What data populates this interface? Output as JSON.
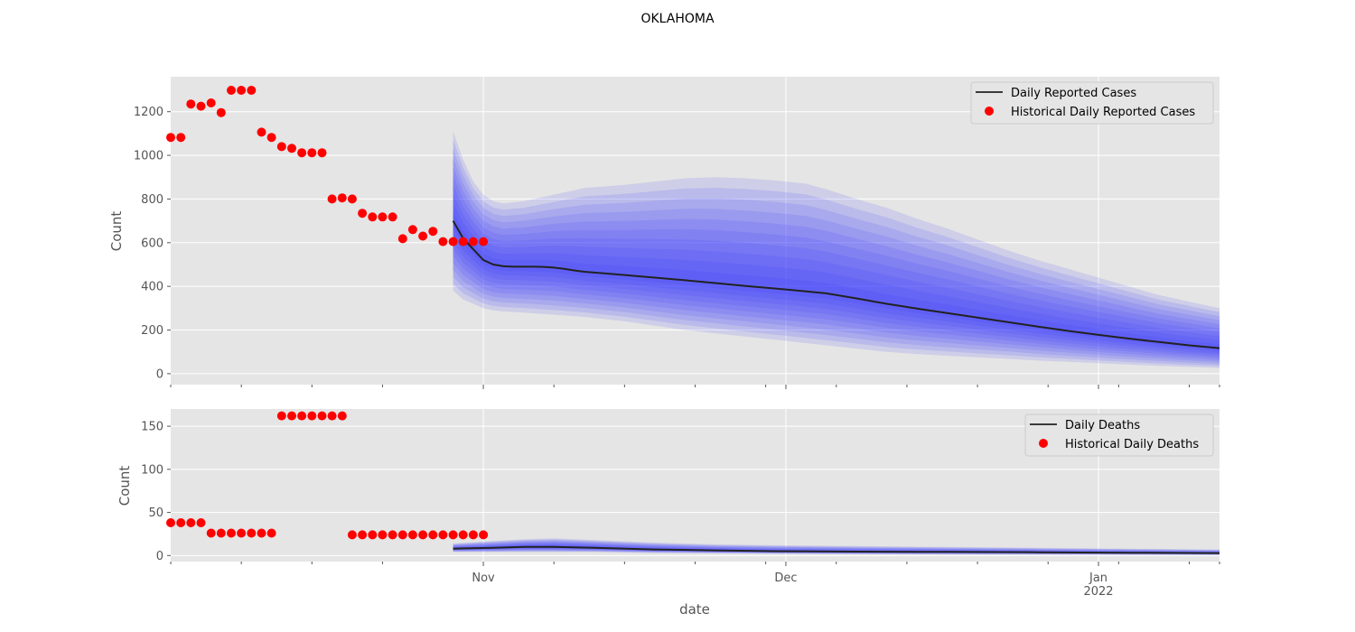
{
  "figure": {
    "title": "OKLAHOMA",
    "xlabel": "date"
  },
  "colors": {
    "panel_bg": "#e5e5e5",
    "grid": "#ffffff",
    "forecast_line": "#222222",
    "band": "#3333ff",
    "historical": "#ff0000"
  },
  "chart_data": [
    {
      "type": "line",
      "name": "cases-panel",
      "ylabel": "Count",
      "ylim": [
        -50,
        1360
      ],
      "yticks": [
        0,
        200,
        400,
        600,
        800,
        1000,
        1200
      ],
      "x_axis": {
        "type": "date",
        "range": [
          "2021-10-01",
          "2022-01-13"
        ],
        "tick_labels_shown": false
      },
      "grid": true,
      "legend": {
        "placement": "top-right",
        "entries": [
          "Daily Reported Cases",
          "Historical Daily Reported Cases"
        ]
      },
      "series": [
        {
          "name": "Daily Reported Cases",
          "kind": "line",
          "x": [
            "2021-10-29",
            "2021-10-30",
            "2021-10-31",
            "2021-11-01",
            "2021-11-02",
            "2021-11-03",
            "2021-11-04",
            "2021-11-05",
            "2021-11-06",
            "2021-11-07",
            "2021-11-08",
            "2021-11-09",
            "2021-11-10",
            "2021-11-11",
            "2021-11-13",
            "2021-11-15",
            "2021-11-18",
            "2021-11-21",
            "2021-11-24",
            "2021-11-27",
            "2021-11-30",
            "2021-12-03",
            "2021-12-05",
            "2021-12-08",
            "2021-12-11",
            "2021-12-14",
            "2021-12-17",
            "2021-12-20",
            "2021-12-23",
            "2021-12-26",
            "2021-12-29",
            "2022-01-01",
            "2022-01-04",
            "2022-01-07",
            "2022-01-10",
            "2022-01-13"
          ],
          "values": [
            700,
            620,
            570,
            520,
            500,
            492,
            490,
            490,
            490,
            489,
            486,
            480,
            473,
            467,
            460,
            452,
            440,
            428,
            415,
            402,
            390,
            377,
            368,
            345,
            320,
            298,
            278,
            257,
            236,
            216,
            196,
            178,
            161,
            145,
            130,
            117
          ]
        },
        {
          "name": "Historical Daily Reported Cases",
          "kind": "scatter",
          "x": [
            "2021-10-01",
            "2021-10-02",
            "2021-10-03",
            "2021-10-04",
            "2021-10-05",
            "2021-10-06",
            "2021-10-07",
            "2021-10-08",
            "2021-10-09",
            "2021-10-10",
            "2021-10-11",
            "2021-10-12",
            "2021-10-13",
            "2021-10-14",
            "2021-10-15",
            "2021-10-16",
            "2021-10-17",
            "2021-10-18",
            "2021-10-19",
            "2021-10-20",
            "2021-10-21",
            "2021-10-22",
            "2021-10-23",
            "2021-10-24",
            "2021-10-25",
            "2021-10-26",
            "2021-10-27",
            "2021-10-28",
            "2021-10-29",
            "2021-10-30",
            "2021-10-31",
            "2021-11-01"
          ],
          "values": [
            1082,
            1082,
            1235,
            1225,
            1240,
            1196,
            1298,
            1298,
            1298,
            1106,
            1082,
            1040,
            1032,
            1012,
            1012,
            1012,
            800,
            805,
            800,
            735,
            718,
            718,
            718,
            618,
            660,
            630,
            652,
            605,
            605,
            605,
            605,
            605
          ]
        }
      ],
      "uncertainty_bands": {
        "x": [
          "2021-10-29",
          "2021-10-30",
          "2021-10-31",
          "2021-11-01",
          "2021-11-02",
          "2021-11-03",
          "2021-11-05",
          "2021-11-08",
          "2021-11-11",
          "2021-11-15",
          "2021-11-18",
          "2021-11-21",
          "2021-11-24",
          "2021-11-27",
          "2021-11-30",
          "2021-12-03",
          "2021-12-05",
          "2021-12-08",
          "2021-12-11",
          "2021-12-14",
          "2021-12-17",
          "2021-12-20",
          "2021-12-23",
          "2021-12-26",
          "2021-12-29",
          "2022-01-01",
          "2022-01-04",
          "2022-01-07",
          "2022-01-10",
          "2022-01-13"
        ],
        "outer_low": [
          380,
          340,
          320,
          300,
          290,
          285,
          280,
          270,
          260,
          240,
          220,
          200,
          185,
          170,
          155,
          140,
          130,
          115,
          100,
          90,
          82,
          75,
          68,
          60,
          54,
          48,
          42,
          36,
          31,
          26
        ],
        "outer_high": [
          1110,
          980,
          880,
          820,
          790,
          780,
          790,
          820,
          850,
          865,
          880,
          895,
          900,
          895,
          885,
          870,
          845,
          800,
          760,
          710,
          665,
          615,
          565,
          520,
          480,
          440,
          400,
          360,
          330,
          300
        ]
      }
    },
    {
      "type": "line",
      "name": "deaths-panel",
      "ylabel": "Count",
      "ylim": [
        -7,
        170
      ],
      "yticks": [
        0,
        50,
        100,
        150
      ],
      "x_axis": {
        "type": "date",
        "range": [
          "2021-10-01",
          "2022-01-13"
        ],
        "tick_labels": [
          "Nov",
          "Dec",
          "Jan\n2022"
        ]
      },
      "grid": true,
      "legend": {
        "placement": "top-right",
        "entries": [
          "Daily Deaths",
          "Historical Daily Deaths"
        ]
      },
      "series": [
        {
          "name": "Daily Deaths",
          "kind": "line",
          "x": [
            "2021-10-29",
            "2021-11-02",
            "2021-11-05",
            "2021-11-08",
            "2021-11-12",
            "2021-11-18",
            "2021-11-24",
            "2021-11-30",
            "2021-12-08",
            "2021-12-17",
            "2021-12-26",
            "2022-01-04",
            "2022-01-13"
          ],
          "values": [
            8,
            9,
            10,
            10,
            9,
            7,
            6,
            5,
            4.5,
            4.2,
            3.8,
            3.3,
            2.8
          ]
        },
        {
          "name": "Historical Daily Deaths",
          "kind": "scatter",
          "x": [
            "2021-10-01",
            "2021-10-02",
            "2021-10-03",
            "2021-10-04",
            "2021-10-05",
            "2021-10-06",
            "2021-10-07",
            "2021-10-08",
            "2021-10-09",
            "2021-10-10",
            "2021-10-11",
            "2021-10-12",
            "2021-10-13",
            "2021-10-14",
            "2021-10-15",
            "2021-10-16",
            "2021-10-17",
            "2021-10-18",
            "2021-10-19",
            "2021-10-20",
            "2021-10-21",
            "2021-10-22",
            "2021-10-23",
            "2021-10-24",
            "2021-10-25",
            "2021-10-26",
            "2021-10-27",
            "2021-10-28",
            "2021-10-29",
            "2021-10-30",
            "2021-10-31",
            "2021-11-01"
          ],
          "values": [
            38,
            38,
            38,
            38,
            26,
            26,
            26,
            26,
            26,
            26,
            26,
            162,
            162,
            162,
            162,
            162,
            162,
            162,
            24,
            24,
            24,
            24,
            24,
            24,
            24,
            24,
            24,
            24,
            24,
            24,
            24,
            24
          ]
        }
      ],
      "uncertainty_bands": {
        "x": [
          "2021-10-29",
          "2021-11-02",
          "2021-11-05",
          "2021-11-08",
          "2021-11-12",
          "2021-11-18",
          "2021-11-24",
          "2021-11-30",
          "2021-12-08",
          "2021-12-17",
          "2021-12-26",
          "2022-01-04",
          "2022-01-13"
        ],
        "outer_low": [
          4,
          4,
          4,
          4,
          4,
          3,
          2.5,
          2,
          1.5,
          1.2,
          1,
          0.8,
          0.5
        ],
        "outer_high": [
          14,
          17,
          19,
          20,
          18,
          15,
          13,
          12,
          11,
          10,
          9,
          8,
          7
        ]
      }
    }
  ]
}
